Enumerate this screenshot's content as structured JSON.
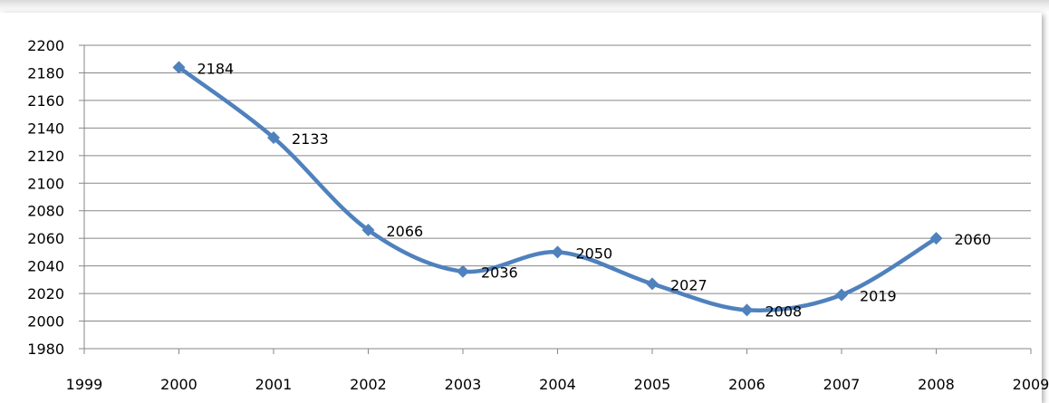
{
  "chart_data": {
    "type": "scatter",
    "mode": "smooth-line-with-markers",
    "title": "",
    "xlabel": "",
    "ylabel": "",
    "xlim": [
      1999,
      2009
    ],
    "ylim": [
      1980,
      2200
    ],
    "x_ticks": [
      "1999",
      "2000",
      "2001",
      "2002",
      "2003",
      "2004",
      "2005",
      "2006",
      "2007",
      "2008",
      "2009"
    ],
    "y_ticks": [
      "1980",
      "2000",
      "2020",
      "2040",
      "2060",
      "2080",
      "2100",
      "2120",
      "2140",
      "2160",
      "2180",
      "2200"
    ],
    "grid": "horizontal",
    "legend": "none",
    "series": [
      {
        "color": "#4F81BD",
        "marker": "diamond",
        "x": [
          2000,
          2001,
          2002,
          2003,
          2004,
          2005,
          2006,
          2007,
          2008
        ],
        "y": [
          2184,
          2133,
          2066,
          2036,
          2050,
          2027,
          2008,
          2019,
          2060
        ],
        "data_labels": [
          "2184",
          "2133",
          "2066",
          "2036",
          "2050",
          "2027",
          "2008",
          "2019",
          "2060"
        ]
      }
    ]
  }
}
